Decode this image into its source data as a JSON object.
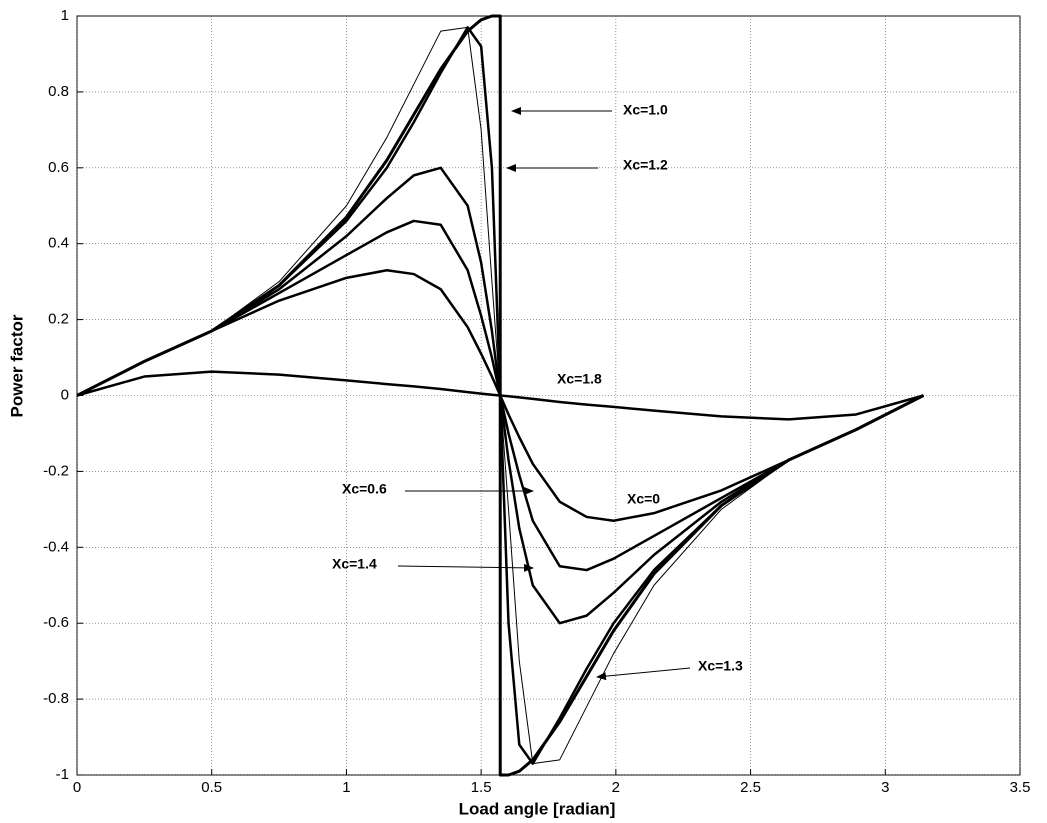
{
  "chart_data": {
    "type": "line",
    "xlabel": "Load angle [radian]",
    "ylabel": "Power factor",
    "xlim": [
      0,
      3.5
    ],
    "ylim": [
      -1,
      1
    ],
    "xticks": [
      0,
      0.5,
      1,
      1.5,
      2,
      2.5,
      3,
      3.5
    ],
    "yticks": [
      -1,
      -0.8,
      -0.6,
      -0.4,
      -0.2,
      0,
      0.2,
      0.4,
      0.6,
      0.8,
      1
    ],
    "grid": true,
    "x": [
      0,
      0.25,
      0.5,
      0.75,
      1.0,
      1.15,
      1.25,
      1.35,
      1.45,
      1.5,
      1.54,
      1.5708,
      1.6016,
      1.6416,
      1.6916,
      1.7916,
      1.8916,
      1.9916,
      2.1416,
      2.3916,
      2.6416,
      2.8916,
      3.1416
    ],
    "series": [
      {
        "color": "#000000",
        "line_width": 2.5,
        "values": [
          0,
          0.09,
          0.17,
          0.25,
          0.31,
          0.33,
          0.32,
          0.28,
          0.18,
          0.11,
          0.05,
          0,
          -0.05,
          -0.11,
          -0.18,
          -0.28,
          -0.32,
          -0.33,
          -0.31,
          -0.25,
          -0.17,
          -0.09,
          0
        ]
      },
      {
        "color": "#000000",
        "line_width": 2.5,
        "values": [
          0,
          0.09,
          0.17,
          0.27,
          0.37,
          0.43,
          0.46,
          0.45,
          0.33,
          0.21,
          0.1,
          0,
          -0.1,
          -0.21,
          -0.33,
          -0.45,
          -0.46,
          -0.43,
          -0.37,
          -0.27,
          -0.17,
          -0.09,
          0
        ]
      },
      {
        "color": "#000000",
        "line_width": 2.5,
        "values": [
          0,
          0.09,
          0.17,
          0.28,
          0.42,
          0.52,
          0.58,
          0.6,
          0.5,
          0.35,
          0.17,
          0,
          -0.17,
          -0.35,
          -0.5,
          -0.6,
          -0.58,
          -0.52,
          -0.42,
          -0.28,
          -0.17,
          -0.09,
          0
        ]
      },
      {
        "color": "#000000",
        "line_width": 2.5,
        "values": [
          0,
          0.09,
          0.17,
          0.29,
          0.46,
          0.6,
          0.72,
          0.85,
          0.97,
          0.92,
          0.6,
          0,
          -0.6,
          -0.92,
          -0.97,
          -0.85,
          -0.72,
          -0.6,
          -0.46,
          -0.29,
          -0.17,
          -0.09,
          0
        ]
      },
      {
        "color": "#000000",
        "line_width": 1,
        "values": [
          0,
          0.09,
          0.17,
          0.3,
          0.5,
          0.68,
          0.82,
          0.96,
          0.97,
          0.7,
          0.3,
          0,
          -0.3,
          -0.7,
          -0.97,
          -0.96,
          -0.82,
          -0.68,
          -0.5,
          -0.3,
          -0.17,
          -0.09,
          0
        ]
      },
      {
        "color": "#000000",
        "line_width": 2.5,
        "values": [
          0,
          0.05,
          0.063,
          0.055,
          0.04,
          0.03,
          0.024,
          0.017,
          0.009,
          0.005,
          0.002,
          0,
          -0.002,
          -0.005,
          -0.009,
          -0.017,
          -0.024,
          -0.03,
          -0.04,
          -0.055,
          -0.063,
          -0.05,
          0
        ]
      },
      {
        "color": "#000000",
        "line_width": 3,
        "x": [
          0,
          0.25,
          0.5,
          0.75,
          1.0,
          1.15,
          1.25,
          1.35,
          1.45,
          1.5,
          1.54,
          1.5708,
          1.5708,
          1.6016,
          1.6416,
          1.6916,
          1.7916,
          1.8916,
          1.9916,
          2.1416,
          2.3916,
          2.6416,
          2.8916,
          3.1416
        ],
        "values": [
          0,
          0.09,
          0.17,
          0.29,
          0.47,
          0.62,
          0.74,
          0.86,
          0.96,
          0.99,
          1.0,
          1.0,
          -1.0,
          -1.0,
          -0.99,
          -0.96,
          -0.86,
          -0.74,
          -0.62,
          -0.47,
          -0.29,
          -0.17,
          -0.09,
          0
        ]
      }
    ],
    "annotations": [
      "Xc=1.0",
      "Xc=1.2",
      "Xc=1.8",
      "Xc=0.6",
      "Xc=0",
      "Xc=1.4",
      "Xc=1.3"
    ]
  }
}
